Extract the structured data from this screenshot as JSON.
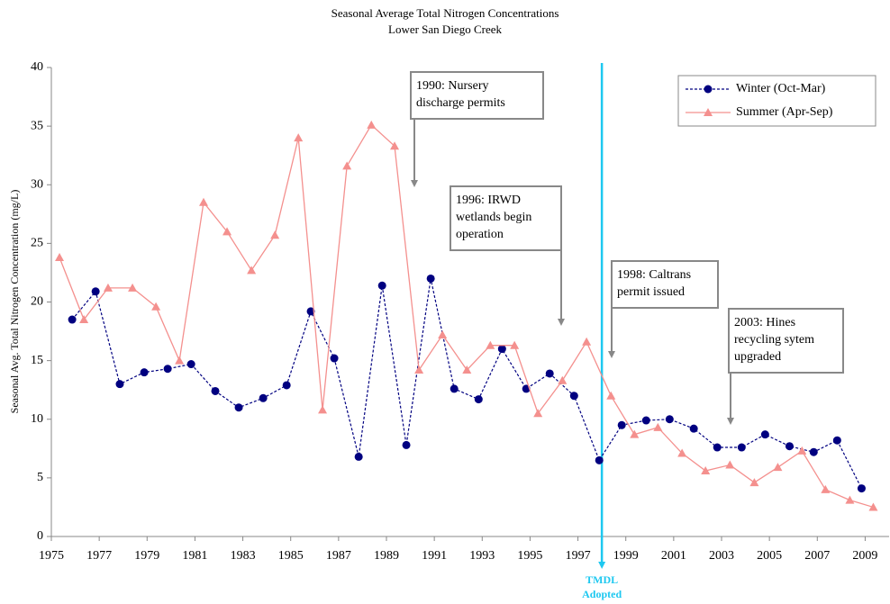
{
  "chart_data": {
    "type": "line",
    "title": "Seasonal Average Total Nitrogen Concentrations",
    "subtitle": "Lower San Diego Creek",
    "y_label": "Seasonal Avg. Total Nitrogen Concentration (mg/L)",
    "xlim": [
      1975,
      2010
    ],
    "ylim": [
      0,
      40
    ],
    "xticks": [
      1975,
      1977,
      1979,
      1981,
      1983,
      1985,
      1987,
      1989,
      1991,
      1993,
      1995,
      1997,
      1999,
      2001,
      2003,
      2005,
      2007,
      2009
    ],
    "yticks": [
      0,
      5,
      10,
      15,
      20,
      25,
      30,
      35,
      40
    ],
    "grid": false,
    "legend": "upper right",
    "series": [
      {
        "name": "Winter (Oct-Mar)",
        "color": "#000080",
        "marker": "circle",
        "dashed": true,
        "x": [
          1975.87,
          1976.85,
          1977.86,
          1978.88,
          1979.86,
          1980.84,
          1981.85,
          1982.83,
          1983.85,
          1984.83,
          1985.84,
          1986.82,
          1987.84,
          1988.82,
          1989.83,
          1990.85,
          1991.83,
          1992.85,
          1993.83,
          1994.84,
          1995.82,
          1996.84,
          1997.89,
          1998.83,
          1999.85,
          2000.83,
          2001.84,
          2002.82,
          2003.84,
          2004.82,
          2005.84,
          2006.85,
          2007.83,
          2008.85
        ],
        "values": [
          18.5,
          20.9,
          13.0,
          14.0,
          14.3,
          14.7,
          12.4,
          11.0,
          11.8,
          12.9,
          19.2,
          15.2,
          6.8,
          21.4,
          7.8,
          22.0,
          12.6,
          11.7,
          16.0,
          12.6,
          13.9,
          12.0,
          6.5,
          9.5,
          9.9,
          10.0,
          9.2,
          7.6,
          7.6,
          8.7,
          7.7,
          7.2,
          8.2,
          4.1
        ]
      },
      {
        "name": "Summer (Apr-Sep)",
        "color": "#f4908e",
        "marker": "triangle",
        "dashed": false,
        "x": [
          1975.34,
          1976.36,
          1977.37,
          1978.39,
          1979.37,
          1980.35,
          1981.36,
          1982.34,
          1983.36,
          1984.34,
          1985.32,
          1986.33,
          1987.35,
          1988.37,
          1989.34,
          1990.36,
          1991.34,
          1992.36,
          1993.34,
          1994.35,
          1995.33,
          1996.35,
          1997.36,
          1998.38,
          1999.36,
          2000.34,
          2001.35,
          2002.33,
          2003.35,
          2004.37,
          2005.35,
          2006.36,
          2007.34,
          2008.36,
          2009.34
        ],
        "values": [
          23.8,
          18.5,
          21.2,
          21.2,
          19.6,
          15.0,
          28.5,
          26.0,
          22.7,
          25.7,
          34.0,
          10.8,
          31.6,
          35.1,
          33.3,
          14.2,
          17.2,
          14.2,
          16.3,
          16.3,
          10.5,
          13.3,
          16.6,
          12.0,
          8.7,
          9.3,
          7.1,
          5.6,
          6.1,
          4.6,
          5.9,
          7.3,
          4.0,
          3.1,
          2.5
        ]
      }
    ],
    "marker_line": {
      "x": 1998,
      "color": "#1ec8f0",
      "lines": [
        "TMDL",
        "Adopted"
      ]
    },
    "annotations": [
      {
        "lines": [
          "1990: Nursery",
          "discharge permits"
        ]
      },
      {
        "lines": [
          "1996: IRWD",
          "wetlands begin",
          "operation"
        ]
      },
      {
        "lines": [
          "1998: Caltrans",
          "permit issued"
        ]
      },
      {
        "lines": [
          "2003: Hines",
          "recycling sytem",
          "upgraded"
        ]
      }
    ]
  }
}
